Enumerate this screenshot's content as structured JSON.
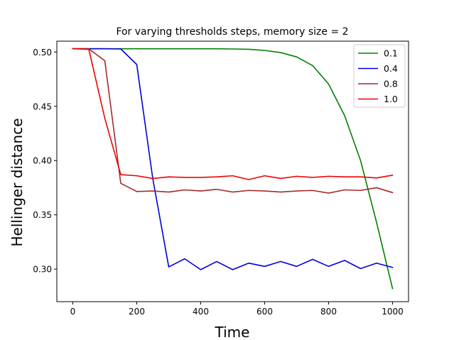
{
  "chart_data": {
    "type": "line",
    "title": "For varying thresholds steps, memory size = 2",
    "xlabel": "Time",
    "ylabel": "Hellinger distance",
    "xlim": [
      -50,
      1050
    ],
    "ylim": [
      0.27,
      0.51
    ],
    "xticks": [
      0,
      200,
      400,
      600,
      800,
      1000
    ],
    "yticks": [
      0.3,
      0.35,
      0.4,
      0.45,
      0.5
    ],
    "xtick_labels": [
      "0",
      "200",
      "400",
      "600",
      "800",
      "1000"
    ],
    "ytick_labels": [
      "0.30",
      "0.35",
      "0.40",
      "0.45",
      "0.50"
    ],
    "grid": false,
    "legend_position": "top-right",
    "x": [
      0,
      50,
      100,
      150,
      200,
      250,
      300,
      350,
      400,
      450,
      500,
      550,
      600,
      650,
      700,
      750,
      800,
      850,
      900,
      950,
      1000
    ],
    "series": [
      {
        "name": "0.1",
        "color": "#008000",
        "values": [
          0.503,
          0.503,
          0.503,
          0.503,
          0.503,
          0.503,
          0.503,
          0.503,
          0.503,
          0.503,
          0.5028,
          0.5025,
          0.5015,
          0.4995,
          0.4955,
          0.4875,
          0.4705,
          0.4415,
          0.4,
          0.343,
          0.282
        ]
      },
      {
        "name": "0.4",
        "color": "#0000dd",
        "values": [
          0.503,
          0.503,
          0.503,
          0.5028,
          0.4885,
          0.3835,
          0.302,
          0.3095,
          0.2995,
          0.307,
          0.2995,
          0.3055,
          0.3025,
          0.307,
          0.3025,
          0.309,
          0.3025,
          0.308,
          0.3005,
          0.3055,
          0.3015
        ]
      },
      {
        "name": "0.8",
        "color": "#a52a2a",
        "values": [
          0.503,
          0.503,
          0.492,
          0.379,
          0.3715,
          0.372,
          0.371,
          0.373,
          0.372,
          0.3735,
          0.371,
          0.3725,
          0.372,
          0.371,
          0.372,
          0.3725,
          0.37,
          0.373,
          0.3725,
          0.375,
          0.3705
        ]
      },
      {
        "name": "1.0",
        "color": "#ee0000",
        "values": [
          0.503,
          0.5025,
          0.439,
          0.387,
          0.386,
          0.3835,
          0.385,
          0.3845,
          0.3845,
          0.385,
          0.386,
          0.3825,
          0.386,
          0.3835,
          0.3855,
          0.3845,
          0.3855,
          0.385,
          0.385,
          0.384,
          0.3865
        ]
      }
    ]
  }
}
